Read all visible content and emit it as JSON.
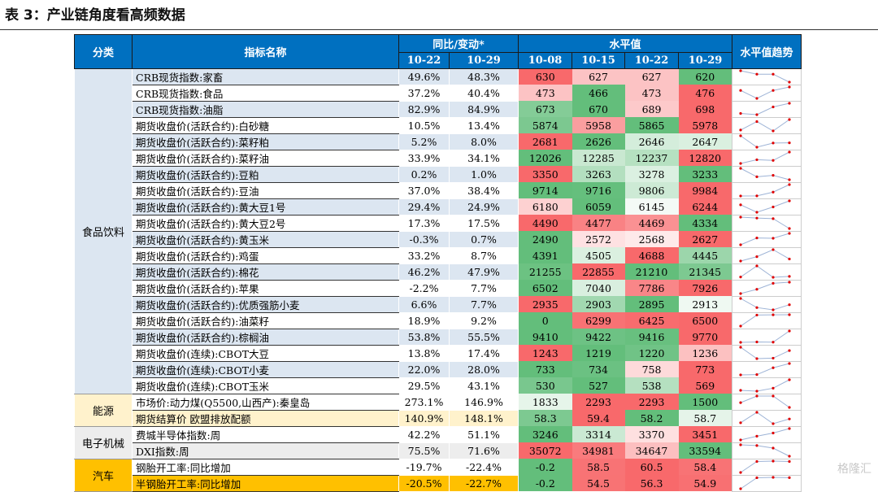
{
  "title": "表 3：产业链角度看高频数据",
  "header": {
    "category": "分类",
    "indicator": "指标名称",
    "yoy_group": "同比/变动*",
    "yoy_dates": [
      "10-22",
      "10-29"
    ],
    "level_group": "水平值",
    "level_dates": [
      "10-08",
      "10-15",
      "10-22",
      "10-29"
    ],
    "trend": "水平值趋势"
  },
  "colors": {
    "header": "#0070c0",
    "low": "#63be7b",
    "mid": "#ffffff",
    "high": "#f8696b",
    "spark_line": "#9db3d6",
    "spark_dot": "#e00000"
  },
  "groups": [
    {
      "category": "食品饮料",
      "bg": "#dce6f1",
      "band": "#dce6f1",
      "rows": [
        {
          "name": "CRB现货指数:家畜",
          "yoy": [
            "49.6%",
            "48.3%"
          ],
          "levels": [
            630,
            627,
            627,
            620
          ]
        },
        {
          "name": "CRB现货指数:食品",
          "yoy": [
            "37.2%",
            "40.4%"
          ],
          "levels": [
            473,
            466,
            473,
            476
          ]
        },
        {
          "name": "CRB现货指数:油脂",
          "yoy": [
            "82.9%",
            "84.9%"
          ],
          "levels": [
            673,
            670,
            689,
            698
          ]
        },
        {
          "name": "期货收盘价(活跃合约):白砂糖",
          "yoy": [
            "10.5%",
            "13.4%"
          ],
          "levels": [
            5874,
            5958,
            5865,
            5978
          ]
        },
        {
          "name": "期货收盘价(活跃合约):菜籽粕",
          "yoy": [
            "5.2%",
            "8.0%"
          ],
          "levels": [
            2681,
            2626,
            2646,
            2647
          ]
        },
        {
          "name": "期货收盘价(活跃合约):菜籽油",
          "yoy": [
            "33.9%",
            "34.1%"
          ],
          "levels": [
            12026,
            12285,
            12237,
            12820
          ]
        },
        {
          "name": "期货收盘价(活跃合约):豆粕",
          "yoy": [
            "0.2%",
            "1.0%"
          ],
          "levels": [
            3350,
            3263,
            3278,
            3233
          ]
        },
        {
          "name": "期货收盘价(活跃合约):豆油",
          "yoy": [
            "37.0%",
            "38.4%"
          ],
          "levels": [
            9714,
            9716,
            9806,
            9984
          ]
        },
        {
          "name": "期货收盘价(活跃合约):黄大豆1号",
          "yoy": [
            "29.4%",
            "24.9%"
          ],
          "levels": [
            6180,
            6059,
            6145,
            6244
          ]
        },
        {
          "name": "期货收盘价(活跃合约):黄大豆2号",
          "yoy": [
            "17.3%",
            "17.5%"
          ],
          "levels": [
            4490,
            4477,
            4469,
            4334
          ]
        },
        {
          "name": "期货收盘价(活跃合约):黄玉米",
          "yoy": [
            "-0.3%",
            "0.7%"
          ],
          "levels": [
            2490,
            2572,
            2568,
            2627
          ]
        },
        {
          "name": "期货收盘价(活跃合约):鸡蛋",
          "yoy": [
            "33.2%",
            "8.7%"
          ],
          "levels": [
            4391,
            4505,
            4688,
            4445
          ]
        },
        {
          "name": "期货收盘价(活跃合约):棉花",
          "yoy": [
            "46.2%",
            "47.9%"
          ],
          "levels": [
            21255,
            22855,
            21210,
            21345
          ]
        },
        {
          "name": "期货收盘价(活跃合约):苹果",
          "yoy": [
            "-2.2%",
            "7.7%"
          ],
          "levels": [
            6502,
            7040,
            7786,
            7926
          ]
        },
        {
          "name": "期货收盘价(活跃合约):优质强筋小麦",
          "yoy": [
            "6.6%",
            "7.7%"
          ],
          "levels": [
            2935,
            2903,
            2895,
            2913
          ]
        },
        {
          "name": "期货收盘价(活跃合约):油菜籽",
          "yoy": [
            "18.9%",
            "9.2%"
          ],
          "levels": [
            0,
            6299,
            6425,
            6500
          ]
        },
        {
          "name": "期货收盘价(活跃合约):棕榈油",
          "yoy": [
            "53.8%",
            "55.5%"
          ],
          "levels": [
            9410,
            9422,
            9416,
            9770
          ]
        },
        {
          "name": "期货收盘价(连续):CBOT大豆",
          "yoy": [
            "13.8%",
            "17.4%"
          ],
          "levels": [
            1243,
            1219,
            1220,
            1236
          ]
        },
        {
          "name": "期货收盘价(连续):CBOT小麦",
          "yoy": [
            "22.0%",
            "28.0%"
          ],
          "levels": [
            733,
            734,
            758,
            773
          ]
        },
        {
          "name": "期货收盘价(连续):CBOT玉米",
          "yoy": [
            "29.5%",
            "43.1%"
          ],
          "levels": [
            530,
            527,
            538,
            569
          ]
        }
      ]
    },
    {
      "category": "能源",
      "bg": "#fff2cc",
      "band": "#fff2cc",
      "rows": [
        {
          "name": "市场价:动力煤(Q5500,山西产):秦皇岛",
          "yoy": [
            "273.1%",
            "146.9%"
          ],
          "levels": [
            1833,
            2293,
            2293,
            1500
          ]
        },
        {
          "name": "期货结算价 欧盟排放配额",
          "yoy": [
            "140.9%",
            "148.1%"
          ],
          "levels": [
            58.3,
            59.4,
            58.2,
            58.7
          ]
        }
      ]
    },
    {
      "category": "电子机械",
      "bg": "#ededed",
      "band": "#ededed",
      "rows": [
        {
          "name": "费城半导体指数:周",
          "yoy": [
            "42.2%",
            "51.1%"
          ],
          "levels": [
            3246,
            3314,
            3370,
            3451
          ]
        },
        {
          "name": "DXI指数:周",
          "yoy": [
            "75.5%",
            "71.6%"
          ],
          "levels": [
            35072,
            34981,
            34647,
            33594
          ]
        }
      ]
    },
    {
      "category": "汽车",
      "bg": "#ffc000",
      "band": "#ffc000",
      "rows": [
        {
          "name": "钢胎开工率:同比增加",
          "yoy": [
            "-19.7%",
            "-22.4%"
          ],
          "levels": [
            -0.2,
            58.5,
            60.5,
            58.4
          ]
        },
        {
          "name": "半钢胎开工率:同比增加",
          "yoy": [
            "-20.5%",
            "-22.7%"
          ],
          "levels": [
            -0.2,
            54.5,
            56.3,
            54.9
          ]
        }
      ]
    }
  ],
  "watermark": "格隆汇"
}
